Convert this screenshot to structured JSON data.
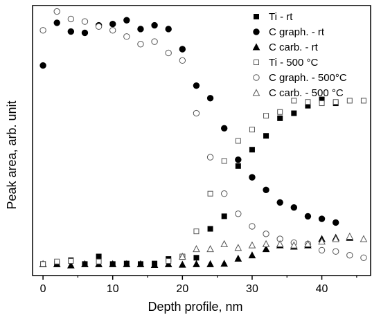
{
  "chart_data": {
    "type": "scatter",
    "xlabel": "Depth profile, nm",
    "ylabel": "Peak area, arb. unit",
    "xlim": [
      -1.5,
      47
    ],
    "ylim": [
      0,
      100
    ],
    "x_ticks": [
      0,
      10,
      20,
      30,
      40
    ],
    "y_ticks_shown": false,
    "legend_position": "top-right",
    "series": [
      {
        "name": "Ti - rt",
        "marker": "square",
        "filled": true,
        "points": [
          [
            0,
            1
          ],
          [
            2,
            1.2
          ],
          [
            4,
            2.5
          ],
          [
            6,
            1
          ],
          [
            8,
            4
          ],
          [
            10,
            1
          ],
          [
            12,
            1.2
          ],
          [
            14,
            1
          ],
          [
            16,
            1.2
          ],
          [
            18,
            3
          ],
          [
            20,
            3.8
          ],
          [
            22,
            3.5
          ],
          [
            24,
            15
          ],
          [
            26,
            20
          ],
          [
            28,
            40
          ],
          [
            30,
            46.5
          ],
          [
            32,
            52
          ],
          [
            34,
            59
          ],
          [
            36,
            61
          ],
          [
            38,
            64
          ],
          [
            40,
            66.5
          ],
          [
            42,
            65
          ]
        ]
      },
      {
        "name": "C graph. - rt",
        "marker": "circle",
        "filled": true,
        "points": [
          [
            0,
            80
          ],
          [
            2,
            97
          ],
          [
            4,
            93.5
          ],
          [
            6,
            93
          ],
          [
            8,
            96
          ],
          [
            10,
            96.5
          ],
          [
            12,
            98
          ],
          [
            14,
            94.5
          ],
          [
            16,
            96
          ],
          [
            18,
            94.5
          ],
          [
            20,
            86.5
          ],
          [
            22,
            72
          ],
          [
            24,
            67
          ],
          [
            26,
            55
          ],
          [
            28,
            42.5
          ],
          [
            30,
            35.5
          ],
          [
            32,
            30.5
          ],
          [
            34,
            25.5
          ],
          [
            36,
            23.5
          ],
          [
            38,
            20
          ],
          [
            40,
            19
          ],
          [
            42,
            17.5
          ]
        ]
      },
      {
        "name": "C carb. - rt",
        "marker": "triangle",
        "filled": true,
        "points": [
          [
            0,
            1
          ],
          [
            2,
            1
          ],
          [
            4,
            0.5
          ],
          [
            6,
            1
          ],
          [
            8,
            1
          ],
          [
            10,
            1
          ],
          [
            12,
            1
          ],
          [
            14,
            1
          ],
          [
            16,
            0.7
          ],
          [
            18,
            1
          ],
          [
            20,
            0.8
          ],
          [
            22,
            1
          ],
          [
            24,
            1
          ],
          [
            26,
            1.2
          ],
          [
            28,
            3.2
          ],
          [
            30,
            4.5
          ],
          [
            32,
            7
          ],
          [
            34,
            8.5
          ],
          [
            36,
            8
          ],
          [
            38,
            8.5
          ],
          [
            40,
            11
          ],
          [
            42,
            11.5
          ],
          [
            44,
            11.5
          ]
        ]
      },
      {
        "name": "Ti - 500 °C",
        "marker": "square",
        "filled": false,
        "points": [
          [
            0,
            1
          ],
          [
            2,
            2
          ],
          [
            4,
            2.2
          ],
          [
            8,
            2
          ],
          [
            18,
            2.2
          ],
          [
            20,
            4
          ],
          [
            22,
            14
          ],
          [
            24,
            29
          ],
          [
            26,
            42
          ],
          [
            28,
            50
          ],
          [
            30,
            54.5
          ],
          [
            32,
            60
          ],
          [
            34,
            61.5
          ],
          [
            36,
            66
          ],
          [
            38,
            65.5
          ],
          [
            40,
            65
          ],
          [
            42,
            65.5
          ],
          [
            44,
            66
          ],
          [
            46,
            66
          ]
        ]
      },
      {
        "name": "C graph. - 500°C",
        "marker": "circle",
        "filled": false,
        "points": [
          [
            0,
            94
          ],
          [
            2,
            101.5
          ],
          [
            4,
            98.5
          ],
          [
            6,
            97.5
          ],
          [
            8,
            95.5
          ],
          [
            10,
            94
          ],
          [
            12,
            91.5
          ],
          [
            14,
            88.5
          ],
          [
            16,
            89.5
          ],
          [
            18,
            85
          ],
          [
            20,
            82
          ],
          [
            22,
            61
          ],
          [
            24,
            43.5
          ],
          [
            26,
            29
          ],
          [
            28,
            21
          ],
          [
            30,
            16
          ],
          [
            32,
            13
          ],
          [
            34,
            11
          ],
          [
            36,
            9.5
          ],
          [
            38,
            9
          ],
          [
            40,
            6.5
          ],
          [
            42,
            6
          ],
          [
            44,
            4.5
          ],
          [
            46,
            3.5
          ]
        ]
      },
      {
        "name": "C carb. - 500 °C",
        "marker": "triangle",
        "filled": false,
        "points": [
          [
            20,
            4
          ],
          [
            22,
            7
          ],
          [
            24,
            7
          ],
          [
            26,
            9
          ],
          [
            28,
            7.5
          ],
          [
            30,
            8.5
          ],
          [
            32,
            9
          ],
          [
            34,
            9
          ],
          [
            36,
            8.5
          ],
          [
            38,
            9
          ],
          [
            40,
            10
          ],
          [
            42,
            11
          ],
          [
            44,
            12
          ],
          [
            46,
            11
          ]
        ]
      }
    ]
  }
}
